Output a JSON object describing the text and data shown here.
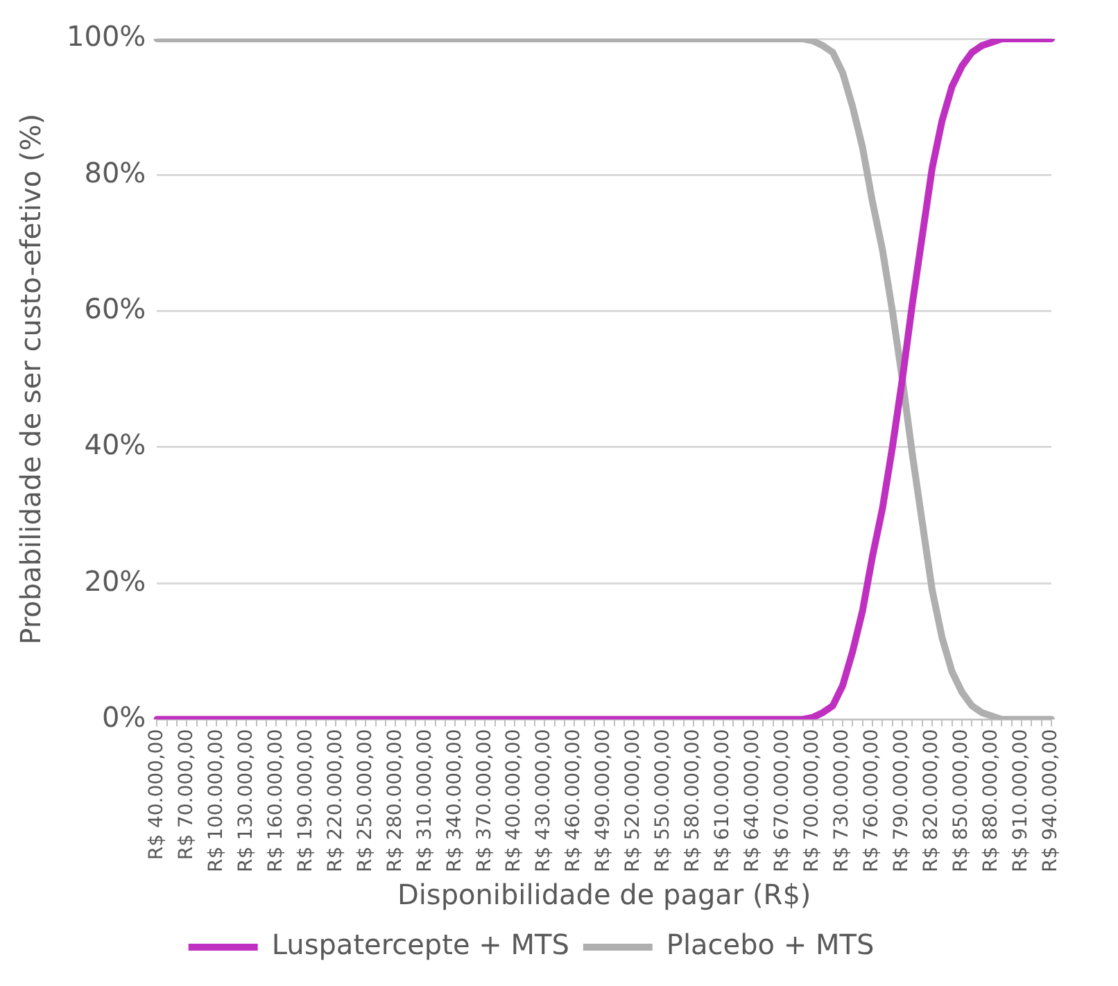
{
  "chart_data": {
    "type": "line",
    "xlabel": "Disponibilidade de pagar (R$)",
    "ylabel": "Probabilidade de ser custo-efetivo (%)",
    "categories": [
      "R$ 40.000,00",
      null,
      null,
      "R$ 70.000,00",
      null,
      null,
      "R$ 100.000,00",
      null,
      null,
      "R$ 130.000,00",
      null,
      null,
      "R$ 160.000,00",
      null,
      null,
      "R$ 190.000,00",
      null,
      null,
      "R$ 220.000,00",
      null,
      null,
      "R$ 250.000,00",
      null,
      null,
      "R$ 280.000,00",
      null,
      null,
      "R$ 310.000,00",
      null,
      null,
      "R$ 340.000,00",
      null,
      null,
      "R$ 370.000,00",
      null,
      null,
      "R$ 400.000,00",
      null,
      null,
      "R$ 430.000,00",
      null,
      null,
      "R$ 460.000,00",
      null,
      null,
      "R$ 490.000,00",
      null,
      null,
      "R$ 520.000,00",
      null,
      null,
      "R$ 550.000,00",
      null,
      null,
      "R$ 580.000,00",
      null,
      null,
      "R$ 610.000,00",
      null,
      null,
      "R$ 640.000,00",
      null,
      null,
      "R$ 670.000,00",
      null,
      null,
      "R$ 700.000,00",
      null,
      null,
      "R$ 730.000,00",
      null,
      null,
      "R$ 760.000,00",
      null,
      null,
      "R$ 790.000,00",
      null,
      null,
      "R$ 820.000,00",
      null,
      null,
      "R$ 850.000,00",
      null,
      null,
      "R$ 880.000,00",
      null,
      null,
      "R$ 910.000,00",
      null,
      null,
      "R$ 940.000,00"
    ],
    "series": [
      {
        "name": "Luspatercepte + MTS",
        "color": "#c030c0",
        "values": [
          0,
          0,
          0,
          0,
          0,
          0,
          0,
          0,
          0,
          0,
          0,
          0,
          0,
          0,
          0,
          0,
          0,
          0,
          0,
          0,
          0,
          0,
          0,
          0,
          0,
          0,
          0,
          0,
          0,
          0,
          0,
          0,
          0,
          0,
          0,
          0,
          0,
          0,
          0,
          0,
          0,
          0,
          0,
          0,
          0,
          0,
          0,
          0,
          0,
          0,
          0,
          0,
          0,
          0,
          0,
          0,
          0,
          0,
          0,
          0,
          0,
          0,
          0,
          0,
          0,
          0,
          0.3,
          1,
          2,
          5,
          10,
          16,
          24,
          31,
          40,
          50,
          61,
          71,
          81,
          88,
          93,
          96,
          98,
          99,
          99.5,
          100,
          100,
          100,
          100,
          100,
          100
        ]
      },
      {
        "name": "Placebo + MTS",
        "color": "#afafaf",
        "values": [
          100,
          100,
          100,
          100,
          100,
          100,
          100,
          100,
          100,
          100,
          100,
          100,
          100,
          100,
          100,
          100,
          100,
          100,
          100,
          100,
          100,
          100,
          100,
          100,
          100,
          100,
          100,
          100,
          100,
          100,
          100,
          100,
          100,
          100,
          100,
          100,
          100,
          100,
          100,
          100,
          100,
          100,
          100,
          100,
          100,
          100,
          100,
          100,
          100,
          100,
          100,
          100,
          100,
          100,
          100,
          100,
          100,
          100,
          100,
          100,
          100,
          100,
          100,
          100,
          100,
          100,
          99.7,
          99,
          98,
          95,
          90,
          84,
          76,
          69,
          60,
          50,
          39,
          29,
          19,
          12,
          7,
          4,
          2,
          1,
          0.5,
          0,
          0,
          0,
          0,
          0,
          0
        ]
      }
    ],
    "ylim": [
      0,
      100
    ],
    "yticks": [
      {
        "value": 0,
        "label": "0%"
      },
      {
        "value": 20,
        "label": "20%"
      },
      {
        "value": 40,
        "label": "40%"
      },
      {
        "value": 60,
        "label": "60%"
      },
      {
        "value": 80,
        "label": "80%"
      },
      {
        "value": 100,
        "label": "100%"
      }
    ],
    "grid": "y",
    "legend": "bottom",
    "marker": "none",
    "line_style": "solid"
  }
}
